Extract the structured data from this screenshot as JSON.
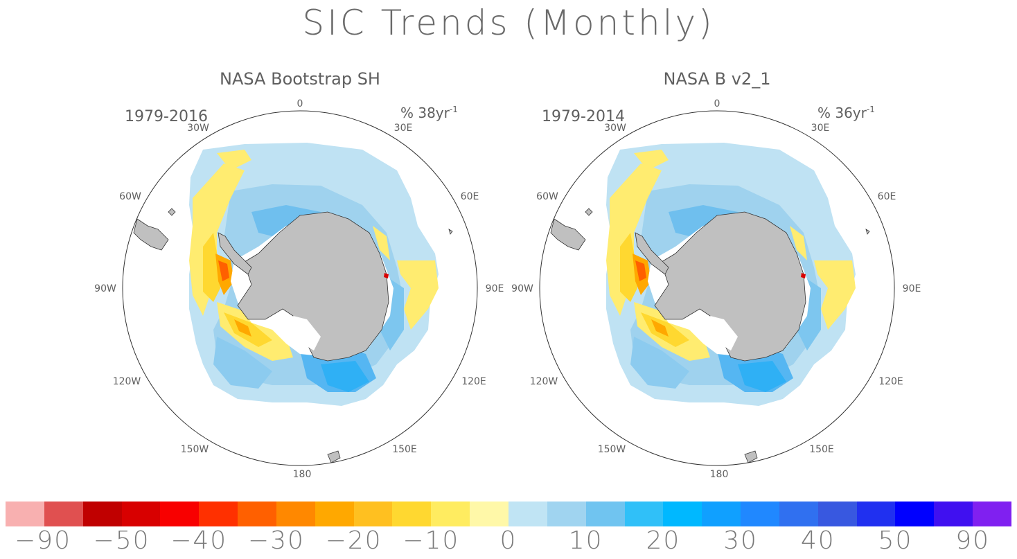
{
  "title": "SIC Trends (Monthly)",
  "colors": {
    "land": "#c0c0c0",
    "ice_white": "#ffffff",
    "outline": "#333333"
  },
  "panels": [
    {
      "subtitle": "NASA Bootstrap SH",
      "period": "1979-2016",
      "units": "% 38yr",
      "units_exp": "-1"
    },
    {
      "subtitle": "NASA B v2_1",
      "period": "1979-2014",
      "units": "% 36yr",
      "units_exp": "-1"
    }
  ],
  "longitude_labels": {
    "lon_0": "0",
    "lon_30e": "30E",
    "lon_60e": "60E",
    "lon_90e": "90E",
    "lon_120e": "120E",
    "lon_150e": "150E",
    "lon_180": "180",
    "lon_150w": "150W",
    "lon_120w": "120W",
    "lon_90w": "90W",
    "lon_60w": "60W",
    "lon_30w": "30W"
  },
  "colorbar": {
    "colors": [
      "#f8b0b0",
      "#e05050",
      "#c00000",
      "#d80000",
      "#f80000",
      "#ff3000",
      "#ff6000",
      "#ff8800",
      "#ffa800",
      "#ffc020",
      "#ffd830",
      "#ffec60",
      "#fff8a8",
      "#c0e4f4",
      "#a0d4f0",
      "#70c4f0",
      "#30c0f8",
      "#00b8ff",
      "#10a0ff",
      "#2088ff",
      "#3070f0",
      "#3858e0",
      "#2030f0",
      "#0000ff",
      "#4010f0",
      "#8020f0"
    ],
    "labels": [
      "-90",
      "-50",
      "-40",
      "-30",
      "-20",
      "-10",
      "0",
      "10",
      "20",
      "30",
      "40",
      "50",
      "90"
    ]
  }
}
